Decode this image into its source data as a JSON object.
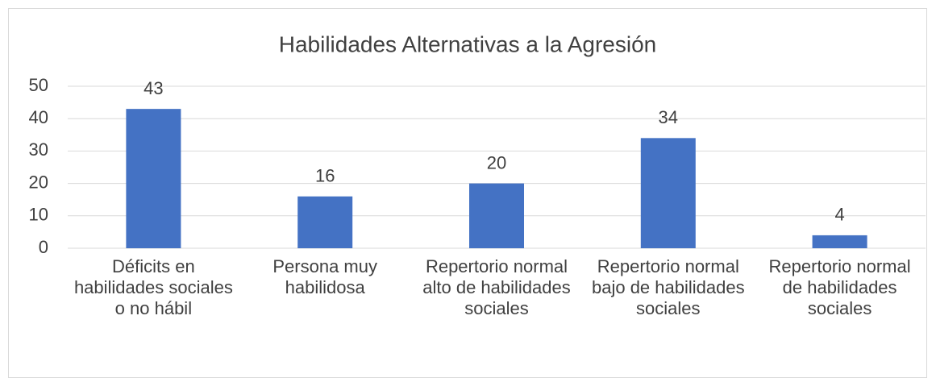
{
  "chart_data": {
    "type": "bar",
    "title": "Habilidades Alternativas a la Agresión",
    "categories": [
      "Déficits en habilidades sociales o no hábil",
      "Persona muy habilidosa",
      "Repertorio normal alto de habilidades sociales",
      "Repertorio normal bajo de habilidades sociales",
      "Repertorio normal de habilidades sociales"
    ],
    "values": [
      43,
      16,
      20,
      34,
      4
    ],
    "color": "#4472c4",
    "ylim": [
      0,
      50
    ],
    "yticks": [
      0,
      10,
      20,
      30,
      40,
      50
    ],
    "grid": true
  }
}
